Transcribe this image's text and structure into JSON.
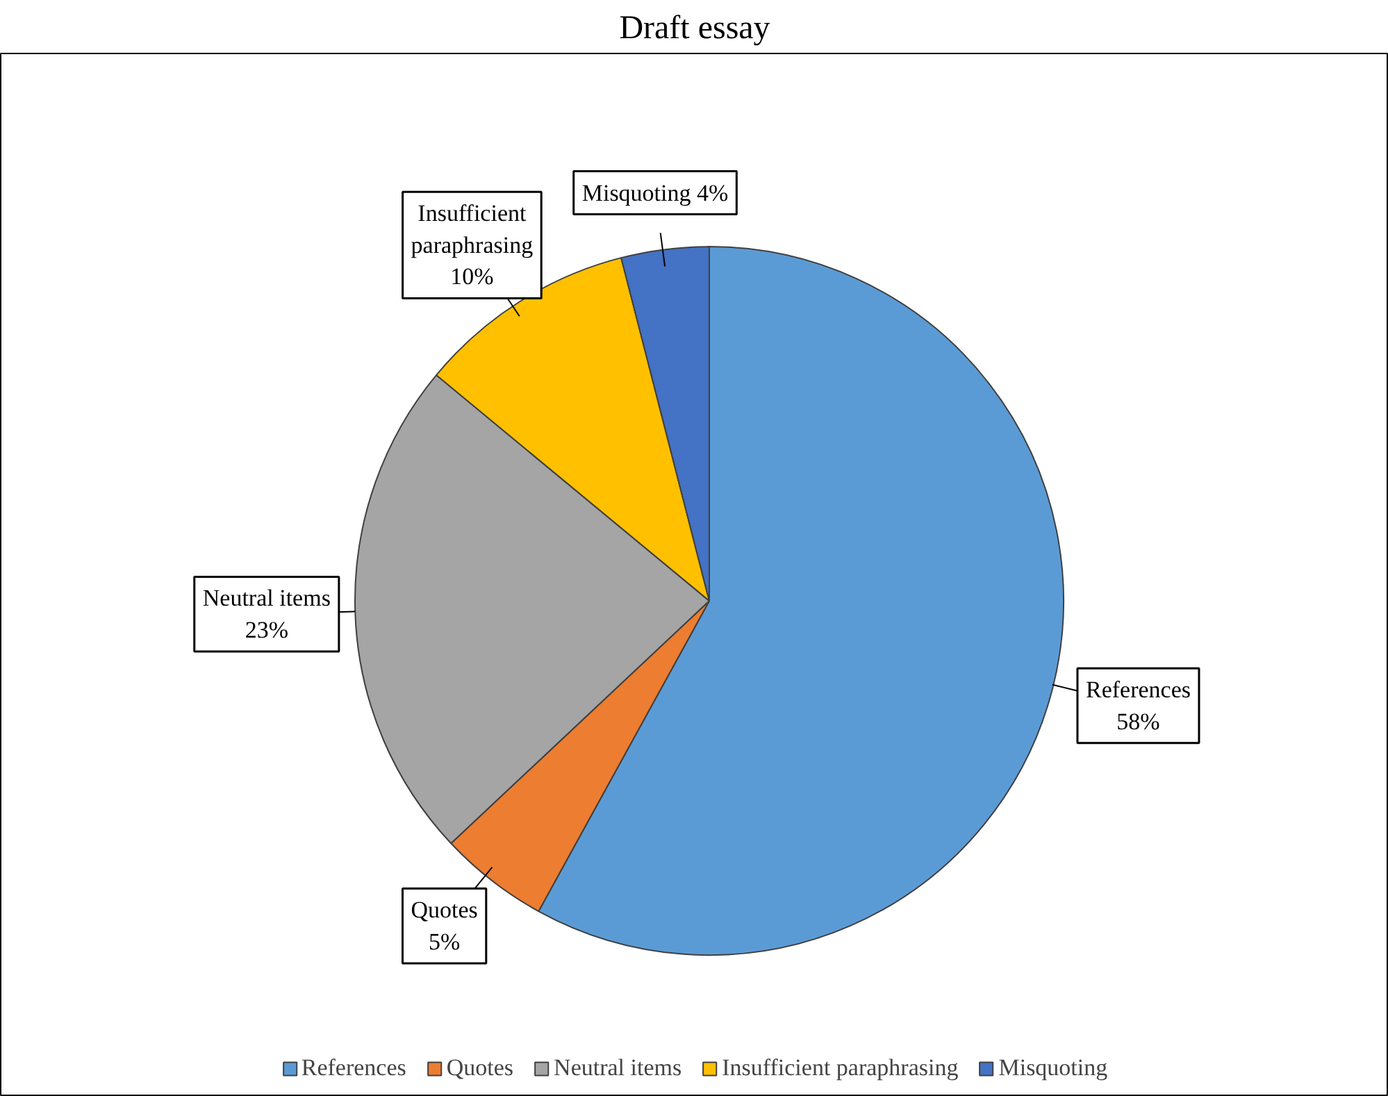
{
  "chart_data": {
    "type": "pie",
    "title": "Draft essay",
    "categories": [
      "References",
      "Quotes",
      "Neutral items",
      "Insufficient paraphrasing",
      "Misquoting"
    ],
    "values": [
      58,
      5,
      23,
      10,
      4
    ],
    "colors": [
      "#5b9bd5",
      "#ed7d31",
      "#a5a5a5",
      "#ffc000",
      "#4472c4"
    ],
    "value_labels": [
      "References\n58%",
      "Quotes\n5%",
      "Neutral items\n23%",
      "Insufficient\nparaphrasing\n10%",
      "Misquoting 4%"
    ],
    "legend": "bottom"
  }
}
